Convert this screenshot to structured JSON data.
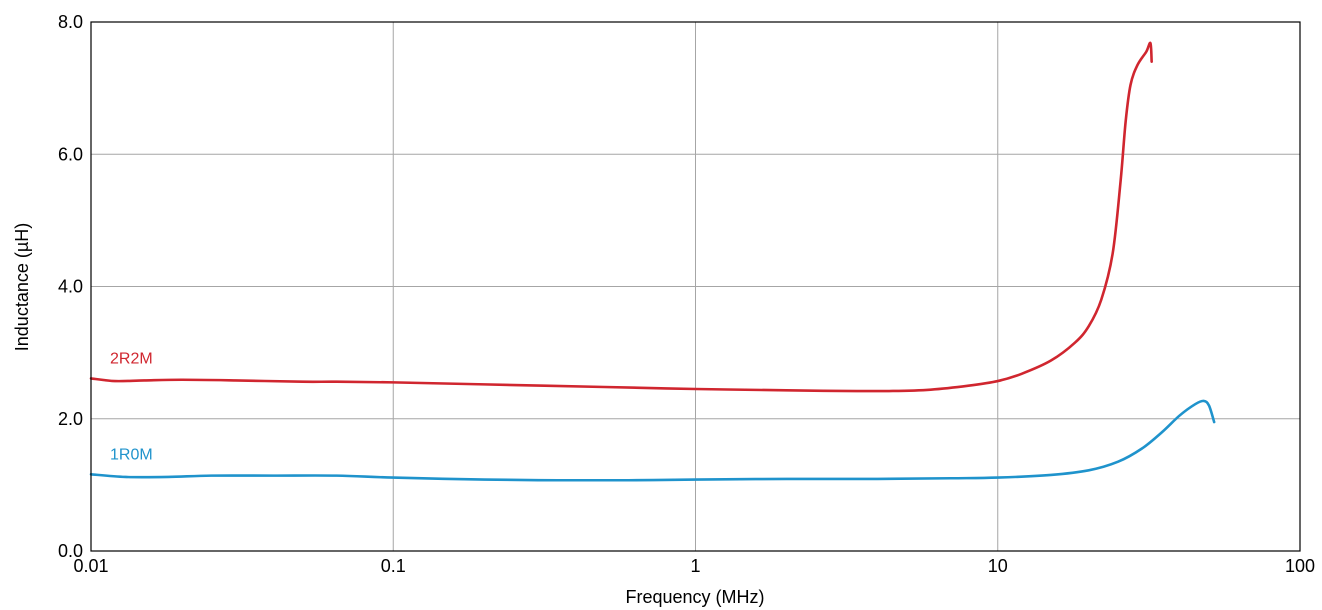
{
  "chart_data": {
    "type": "line",
    "title": "",
    "xlabel": "Frequency (MHz)",
    "ylabel": "Inductance (µH)",
    "xscale": "log",
    "xlim": [
      0.01,
      100
    ],
    "ylim": [
      0,
      8
    ],
    "grid": true,
    "legend": "none",
    "x_ticks": [
      {
        "value": 0.01,
        "label": "0.01"
      },
      {
        "value": 0.1,
        "label": "0.1"
      },
      {
        "value": 1,
        "label": "1"
      },
      {
        "value": 10,
        "label": "10"
      },
      {
        "value": 100,
        "label": "100"
      }
    ],
    "y_ticks": [
      {
        "value": 0,
        "label": "0.0"
      },
      {
        "value": 2,
        "label": "2.0"
      },
      {
        "value": 4,
        "label": "4.0"
      },
      {
        "value": 6,
        "label": "6.0"
      },
      {
        "value": 8,
        "label": "8.0"
      }
    ],
    "series": [
      {
        "name": "2R2M",
        "color": "#d0262f",
        "points": [
          [
            0.01,
            2.61
          ],
          [
            0.012,
            2.57
          ],
          [
            0.015,
            2.58
          ],
          [
            0.02,
            2.59
          ],
          [
            0.03,
            2.58
          ],
          [
            0.05,
            2.56
          ],
          [
            0.065,
            2.56
          ],
          [
            0.1,
            2.55
          ],
          [
            0.2,
            2.52
          ],
          [
            0.5,
            2.48
          ],
          [
            1,
            2.45
          ],
          [
            2,
            2.43
          ],
          [
            3,
            2.42
          ],
          [
            4.5,
            2.42
          ],
          [
            6,
            2.44
          ],
          [
            8,
            2.5
          ],
          [
            10,
            2.57
          ],
          [
            12,
            2.68
          ],
          [
            15,
            2.88
          ],
          [
            18,
            3.15
          ],
          [
            20,
            3.4
          ],
          [
            22,
            3.8
          ],
          [
            24,
            4.5
          ],
          [
            25.5,
            5.6
          ],
          [
            26.5,
            6.5
          ],
          [
            27.5,
            7.05
          ],
          [
            29,
            7.35
          ],
          [
            31,
            7.55
          ],
          [
            32,
            7.68
          ],
          [
            32.3,
            7.4
          ]
        ]
      },
      {
        "name": "1R0M",
        "color": "#1f93cc",
        "points": [
          [
            0.01,
            1.16
          ],
          [
            0.013,
            1.12
          ],
          [
            0.018,
            1.12
          ],
          [
            0.025,
            1.14
          ],
          [
            0.04,
            1.14
          ],
          [
            0.065,
            1.14
          ],
          [
            0.1,
            1.11
          ],
          [
            0.2,
            1.08
          ],
          [
            0.35,
            1.07
          ],
          [
            0.6,
            1.07
          ],
          [
            1,
            1.08
          ],
          [
            2,
            1.09
          ],
          [
            4,
            1.09
          ],
          [
            7,
            1.1
          ],
          [
            10,
            1.11
          ],
          [
            15,
            1.15
          ],
          [
            20,
            1.22
          ],
          [
            25,
            1.35
          ],
          [
            30,
            1.55
          ],
          [
            35,
            1.8
          ],
          [
            40,
            2.05
          ],
          [
            45,
            2.22
          ],
          [
            48,
            2.27
          ],
          [
            50,
            2.2
          ],
          [
            52,
            1.95
          ]
        ]
      }
    ]
  }
}
